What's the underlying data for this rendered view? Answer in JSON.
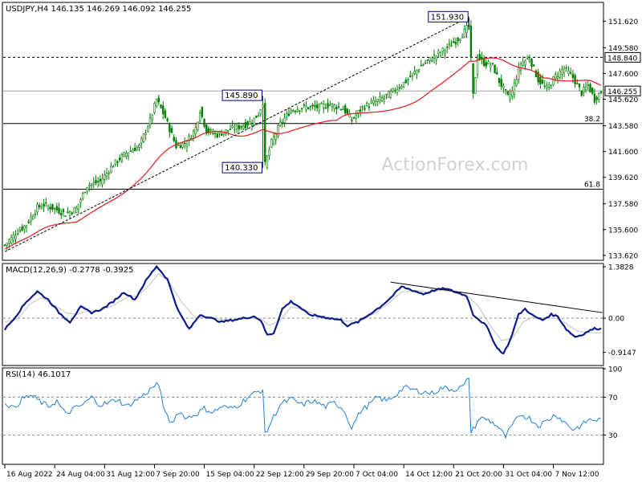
{
  "chart_data": [
    {
      "type": "candlestick",
      "title": "USDJPY,H4  146.135 146.269 146.092 146.255",
      "watermark": "ActionForex.com",
      "ylim": [
        133.3,
        153.0
      ],
      "y_ticks": [
        "151.620",
        "149.580",
        "147.600",
        "145.620",
        "143.580",
        "141.600",
        "139.620",
        "137.580",
        "135.600",
        "133.620"
      ],
      "y_tick_values": [
        151.62,
        149.58,
        147.6,
        145.62,
        143.58,
        141.6,
        139.62,
        137.58,
        135.6,
        133.62
      ],
      "price_tag": "146.255",
      "price_tag_value": 146.255,
      "level_tag": "148.840",
      "level_tag_value": 148.84,
      "horizontal_lines": [
        {
          "value": 148.84,
          "style": "dotted",
          "label": ""
        },
        {
          "value": 146.25,
          "style": "solid-gray",
          "label": ""
        },
        {
          "value": 143.75,
          "style": "solid",
          "label": "38.2"
        },
        {
          "value": 138.7,
          "style": "solid",
          "label": "61.8"
        }
      ],
      "annotations": [
        {
          "text": "151.930",
          "value": 151.93,
          "i": 214
        },
        {
          "text": "145.890",
          "value": 145.89,
          "i": 119
        },
        {
          "text": "140.330",
          "value": 140.33,
          "i": 119
        }
      ],
      "trendline": {
        "from": [
          0,
          133.9
        ],
        "to": [
          214,
          151.93
        ]
      },
      "ma_color": "#e31a1c",
      "candle_color": "#008000",
      "waypoints": [
        [
          0,
          134.4
        ],
        [
          5,
          135.3
        ],
        [
          10,
          136.0
        ],
        [
          15,
          137.3
        ],
        [
          18,
          137.5
        ],
        [
          23,
          137.2
        ],
        [
          28,
          136.8
        ],
        [
          33,
          137.2
        ],
        [
          38,
          139.0
        ],
        [
          44,
          139.3
        ],
        [
          50,
          140.6
        ],
        [
          56,
          141.5
        ],
        [
          62,
          142.0
        ],
        [
          67,
          144.0
        ],
        [
          70,
          145.6
        ],
        [
          74,
          144.2
        ],
        [
          79,
          142.0
        ],
        [
          84,
          142.3
        ],
        [
          88,
          143.4
        ],
        [
          90,
          144.8
        ],
        [
          93,
          143.2
        ],
        [
          98,
          142.9
        ],
        [
          104,
          143.3
        ],
        [
          110,
          143.6
        ],
        [
          114,
          143.9
        ],
        [
          117,
          144.5
        ],
        [
          119,
          145.4
        ],
        [
          120,
          140.6
        ],
        [
          123,
          142.3
        ],
        [
          127,
          143.7
        ],
        [
          132,
          144.8
        ],
        [
          138,
          145.0
        ],
        [
          144,
          145.0
        ],
        [
          150,
          145.2
        ],
        [
          156,
          144.9
        ],
        [
          160,
          144.0
        ],
        [
          165,
          145.0
        ],
        [
          172,
          145.5
        ],
        [
          178,
          146.1
        ],
        [
          185,
          147.0
        ],
        [
          192,
          148.2
        ],
        [
          199,
          149.0
        ],
        [
          204,
          149.6
        ],
        [
          208,
          150.1
        ],
        [
          212,
          150.8
        ],
        [
          214,
          151.3
        ],
        [
          216,
          145.9
        ],
        [
          218,
          148.9
        ],
        [
          221,
          148.4
        ],
        [
          225,
          148.2
        ],
        [
          228,
          147.0
        ],
        [
          232,
          145.8
        ],
        [
          234,
          146.2
        ],
        [
          238,
          148.4
        ],
        [
          242,
          148.8
        ],
        [
          246,
          147.1
        ],
        [
          250,
          146.4
        ],
        [
          254,
          147.4
        ],
        [
          258,
          148.0
        ],
        [
          262,
          147.3
        ],
        [
          266,
          146.1
        ],
        [
          269,
          146.7
        ],
        [
          272,
          145.6
        ],
        [
          275,
          146.2
        ]
      ],
      "x_ticks": [
        {
          "label": "16 Aug 2022",
          "i": 0
        },
        {
          "label": "24 Aug 04:00",
          "i": 23
        },
        {
          "label": "31 Aug 12:00",
          "i": 46
        },
        {
          "label": "7 Sep 20:00",
          "i": 69
        },
        {
          "label": "15 Sep 04:00",
          "i": 92
        },
        {
          "label": "22 Sep 12:00",
          "i": 115
        },
        {
          "label": "29 Sep 20:00",
          "i": 138
        },
        {
          "label": "7 Oct 04:00",
          "i": 161
        },
        {
          "label": "14 Oct 12:00",
          "i": 184
        },
        {
          "label": "21 Oct 20:00",
          "i": 207
        },
        {
          "label": "31 Oct 04:00",
          "i": 230
        },
        {
          "label": "7 Nov 12:00",
          "i": 253
        }
      ]
    },
    {
      "type": "line",
      "title": "MACD(12,26,9) -0.2778 -0.3925",
      "ylim": [
        -1.25,
        1.45
      ],
      "y_ticks": [
        "1.3828",
        "0.00",
        "-0.9147"
      ],
      "y_tick_values": [
        1.3828,
        0,
        -0.9147
      ],
      "macd_waypoints": [
        [
          0,
          -0.3
        ],
        [
          5,
          0.05
        ],
        [
          10,
          0.45
        ],
        [
          15,
          0.72
        ],
        [
          20,
          0.5
        ],
        [
          25,
          0.15
        ],
        [
          30,
          -0.1
        ],
        [
          35,
          0.3
        ],
        [
          40,
          0.15
        ],
        [
          45,
          0.25
        ],
        [
          50,
          0.45
        ],
        [
          55,
          0.7
        ],
        [
          60,
          0.5
        ],
        [
          65,
          1.0
        ],
        [
          70,
          1.4
        ],
        [
          75,
          1.05
        ],
        [
          80,
          0.2
        ],
        [
          85,
          -0.3
        ],
        [
          90,
          0.1
        ],
        [
          95,
          0.0
        ],
        [
          100,
          -0.1
        ],
        [
          105,
          -0.05
        ],
        [
          110,
          0.0
        ],
        [
          115,
          0.05
        ],
        [
          118,
          -0.05
        ],
        [
          121,
          -0.45
        ],
        [
          124,
          -0.4
        ],
        [
          128,
          0.25
        ],
        [
          132,
          0.45
        ],
        [
          136,
          0.3
        ],
        [
          140,
          0.1
        ],
        [
          145,
          0.05
        ],
        [
          150,
          0.0
        ],
        [
          155,
          -0.05
        ],
        [
          158,
          -0.2
        ],
        [
          163,
          -0.1
        ],
        [
          168,
          0.1
        ],
        [
          173,
          0.3
        ],
        [
          178,
          0.55
        ],
        [
          183,
          0.85
        ],
        [
          188,
          0.75
        ],
        [
          193,
          0.65
        ],
        [
          198,
          0.75
        ],
        [
          203,
          0.8
        ],
        [
          208,
          0.7
        ],
        [
          213,
          0.6
        ],
        [
          216,
          0.1
        ],
        [
          222,
          -0.2
        ],
        [
          227,
          -0.8
        ],
        [
          230,
          -0.95
        ],
        [
          233,
          -0.6
        ],
        [
          237,
          0.1
        ],
        [
          240,
          0.25
        ],
        [
          244,
          0.05
        ],
        [
          248,
          -0.05
        ],
        [
          252,
          0.1
        ],
        [
          255,
          0.05
        ],
        [
          259,
          -0.3
        ],
        [
          263,
          -0.5
        ],
        [
          266,
          -0.45
        ],
        [
          269,
          -0.35
        ],
        [
          272,
          -0.28
        ]
      ],
      "signal_waypoints": [
        [
          0,
          -0.1
        ],
        [
          6,
          0.0
        ],
        [
          12,
          0.4
        ],
        [
          17,
          0.55
        ],
        [
          23,
          0.35
        ],
        [
          28,
          0.15
        ],
        [
          33,
          0.1
        ],
        [
          38,
          0.2
        ],
        [
          44,
          0.2
        ],
        [
          50,
          0.35
        ],
        [
          56,
          0.55
        ],
        [
          61,
          0.6
        ],
        [
          66,
          0.85
        ],
        [
          71,
          1.2
        ],
        [
          76,
          0.95
        ],
        [
          82,
          0.4
        ],
        [
          88,
          0.0
        ],
        [
          93,
          0.05
        ],
        [
          99,
          -0.02
        ],
        [
          106,
          -0.05
        ],
        [
          112,
          0.0
        ],
        [
          118,
          0.0
        ],
        [
          122,
          -0.2
        ],
        [
          127,
          -0.05
        ],
        [
          132,
          0.3
        ],
        [
          137,
          0.25
        ],
        [
          143,
          0.1
        ],
        [
          150,
          0.02
        ],
        [
          158,
          -0.08
        ],
        [
          165,
          -0.05
        ],
        [
          171,
          0.15
        ],
        [
          177,
          0.4
        ],
        [
          183,
          0.7
        ],
        [
          189,
          0.75
        ],
        [
          195,
          0.7
        ],
        [
          201,
          0.75
        ],
        [
          207,
          0.72
        ],
        [
          213,
          0.62
        ],
        [
          218,
          0.35
        ],
        [
          224,
          -0.2
        ],
        [
          229,
          -0.6
        ],
        [
          234,
          -0.55
        ],
        [
          239,
          -0.1
        ],
        [
          244,
          0.05
        ],
        [
          249,
          0.0
        ],
        [
          254,
          0.0
        ],
        [
          259,
          -0.15
        ],
        [
          264,
          -0.35
        ],
        [
          269,
          -0.38
        ],
        [
          272,
          -0.39
        ]
      ],
      "trendline": {
        "from": [
          178,
          0.97
        ],
        "to": [
          282,
          0.15
        ]
      },
      "macd_color": "#0d1a8c",
      "signal_color": "#c0c0c0"
    },
    {
      "type": "line",
      "title": "RSI(14) 46.1017",
      "ylim": [
        0,
        100
      ],
      "y_ticks": [
        "100",
        "70",
        "30"
      ],
      "y_tick_values": [
        100,
        70,
        30
      ],
      "rsi_waypoints": [
        [
          0,
          65
        ],
        [
          4,
          58
        ],
        [
          8,
          68
        ],
        [
          12,
          72
        ],
        [
          16,
          66
        ],
        [
          20,
          60
        ],
        [
          24,
          66
        ],
        [
          28,
          52
        ],
        [
          32,
          58
        ],
        [
          36,
          62
        ],
        [
          40,
          70
        ],
        [
          44,
          62
        ],
        [
          48,
          64
        ],
        [
          52,
          68
        ],
        [
          56,
          60
        ],
        [
          60,
          66
        ],
        [
          64,
          72
        ],
        [
          68,
          80
        ],
        [
          70,
          84
        ],
        [
          72,
          75
        ],
        [
          74,
          52
        ],
        [
          77,
          42
        ],
        [
          80,
          55
        ],
        [
          84,
          48
        ],
        [
          88,
          52
        ],
        [
          92,
          58
        ],
        [
          96,
          54
        ],
        [
          100,
          60
        ],
        [
          104,
          58
        ],
        [
          108,
          62
        ],
        [
          112,
          70
        ],
        [
          116,
          75
        ],
        [
          119,
          78
        ],
        [
          120,
          30
        ],
        [
          123,
          45
        ],
        [
          127,
          62
        ],
        [
          132,
          68
        ],
        [
          137,
          62
        ],
        [
          142,
          66
        ],
        [
          148,
          60
        ],
        [
          152,
          64
        ],
        [
          156,
          58
        ],
        [
          160,
          38
        ],
        [
          164,
          55
        ],
        [
          168,
          62
        ],
        [
          172,
          70
        ],
        [
          176,
          66
        ],
        [
          180,
          72
        ],
        [
          184,
          80
        ],
        [
          188,
          78
        ],
        [
          192,
          76
        ],
        [
          197,
          74
        ],
        [
          202,
          80
        ],
        [
          207,
          78
        ],
        [
          212,
          82
        ],
        [
          214,
          92
        ],
        [
          215,
          32
        ],
        [
          219,
          48
        ],
        [
          223,
          46
        ],
        [
          227,
          40
        ],
        [
          231,
          28
        ],
        [
          234,
          40
        ],
        [
          238,
          52
        ],
        [
          242,
          48
        ],
        [
          246,
          40
        ],
        [
          250,
          45
        ],
        [
          254,
          52
        ],
        [
          258,
          44
        ],
        [
          262,
          36
        ],
        [
          266,
          40
        ],
        [
          269,
          46
        ],
        [
          272,
          46
        ]
      ],
      "rsi_color": "#1e7fd6"
    }
  ]
}
